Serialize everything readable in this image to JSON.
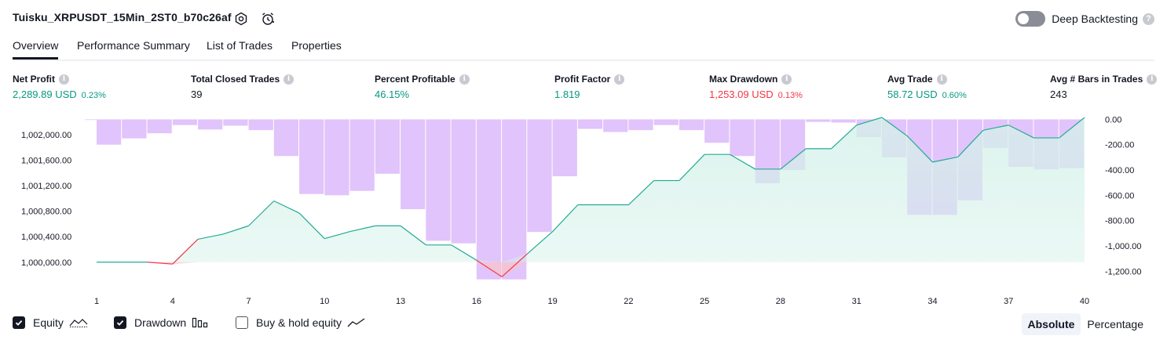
{
  "header": {
    "strategy_title": "Tuisku_XRPUSDT_15Min_2ST0_b70c26af",
    "icons": [
      "settings-icon",
      "alarm-clock-icon"
    ],
    "deep_backtesting": {
      "label": "Deep Backtesting",
      "enabled": false
    }
  },
  "tabs": [
    {
      "label": "Overview",
      "active": true
    },
    {
      "label": "Performance Summary",
      "active": false
    },
    {
      "label": "List of Trades",
      "active": false
    },
    {
      "label": "Properties",
      "active": false
    }
  ],
  "metrics": [
    {
      "label": "Net Profit",
      "value": "2,289.89 USD",
      "pct": "0.23%",
      "color": "#089981"
    },
    {
      "label": "Total Closed Trades",
      "value": "39",
      "pct": "",
      "color": "#131722"
    },
    {
      "label": "Percent Profitable",
      "value": "46.15%",
      "pct": "",
      "color": "#089981"
    },
    {
      "label": "Profit Factor",
      "value": "1.819",
      "pct": "",
      "color": "#089981"
    },
    {
      "label": "Max Drawdown",
      "value": "1,253.09 USD",
      "pct": "0.13%",
      "color": "#f23645"
    },
    {
      "label": "Avg Trade",
      "value": "58.72 USD",
      "pct": "0.60%",
      "color": "#089981"
    },
    {
      "label": "Avg # Bars in Trades",
      "value": "243",
      "pct": "",
      "color": "#131722"
    }
  ],
  "chart_data": {
    "type": "line",
    "x_ticks": [
      "1",
      "4",
      "7",
      "10",
      "13",
      "16",
      "19",
      "22",
      "25",
      "28",
      "31",
      "34",
      "37",
      "40"
    ],
    "left_axis_ticks": [
      "1,002,000.00",
      "1,001,600.00",
      "1,001,200.00",
      "1,000,800.00",
      "1,000,400.00",
      "1,000,000.00"
    ],
    "right_axis_ticks": [
      "0.00",
      "-200.00",
      "-400.00",
      "-600.00",
      "-800.00",
      "-1,000.00",
      "-1,200.00"
    ],
    "left_ylim": [
      999690,
      1002270
    ],
    "right_ylim": [
      -1285,
      15
    ],
    "x": [
      1,
      2,
      3,
      4,
      5,
      6,
      7,
      8,
      9,
      10,
      11,
      12,
      13,
      14,
      15,
      16,
      17,
      18,
      19,
      20,
      21,
      22,
      23,
      24,
      25,
      26,
      27,
      28,
      29,
      30,
      31,
      32,
      33,
      34,
      35,
      36,
      37,
      38,
      39,
      40
    ],
    "series": [
      {
        "values": [
          1000000,
          1000000,
          1000000,
          999970,
          1000360,
          1000440,
          1000570,
          1000960,
          1000770,
          1000370,
          1000480,
          1000570,
          1000570,
          1000270,
          1000270,
          1000030,
          999770,
          1000130,
          1000480,
          1000900,
          1000900,
          1000900,
          1001280,
          1001280,
          1001690,
          1001690,
          1001460,
          1001460,
          1001780,
          1001780,
          1002150,
          1002270,
          1001980,
          1001570,
          1001650,
          1002070,
          1002150,
          1001950,
          1001950,
          1002270
        ],
        "colors": {
          "line_up": "#22ab94",
          "line_down": "#f23645",
          "fill": "#d4f1e9"
        }
      },
      {
        "values": [
          0,
          -200,
          -150,
          -110,
          -45,
          -80,
          -50,
          -85,
          -290,
          -590,
          -600,
          -565,
          -430,
          -710,
          -960,
          -980,
          -1265,
          -1265,
          -890,
          -450,
          -75,
          -100,
          -85,
          -45,
          -85,
          -185,
          -290,
          -505,
          -400,
          -20,
          -25,
          -140,
          -300,
          -755,
          -755,
          -640,
          -225,
          -375,
          -395,
          -385
        ],
        "colors": {
          "bar": "#e1c4fb"
        }
      }
    ]
  },
  "legend": [
    {
      "label": "Equity",
      "checked": true,
      "icon": "equity-line-icon"
    },
    {
      "label": "Drawdown",
      "checked": true,
      "icon": "drawdown-bars-icon"
    },
    {
      "label": "Buy & hold equity",
      "checked": false,
      "icon": "buy-hold-line-icon"
    }
  ],
  "view_toggle": [
    {
      "label": "Absolute",
      "active": true
    },
    {
      "label": "Percentage",
      "active": false
    }
  ]
}
